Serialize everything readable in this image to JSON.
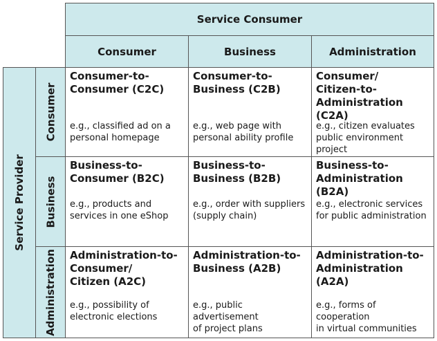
{
  "service_consumer": {
    "title": "Service Consumer",
    "columns": [
      "Consumer",
      "Business",
      "Administration"
    ]
  },
  "service_provider": {
    "title": "Service Provider",
    "rows": [
      "Consumer",
      "Business",
      "Administration"
    ]
  },
  "cells": [
    [
      {
        "title": "Consumer-to-\nConsumer (C2C)",
        "example": "e.g., classified ad on a\npersonal homepage"
      },
      {
        "title": "Consumer-to-\nBusiness (C2B)",
        "example": "e.g., web page with\npersonal ability profile"
      },
      {
        "title": "Consumer/\nCitizen-to-\nAdministration (C2A)",
        "example": "e.g., citizen evaluates\npublic environment\nproject"
      }
    ],
    [
      {
        "title": "Business-to-\nConsumer (B2C)",
        "example": "e.g., products and\nservices in one eShop"
      },
      {
        "title": "Business-to-\nBusiness (B2B)",
        "example": "e.g., order with suppliers\n(supply chain)"
      },
      {
        "title": "Business-to-\nAdministration (B2A)",
        "example": "e.g., electronic services\nfor public administration"
      }
    ],
    [
      {
        "title": "Administration-to-\nConsumer/\nCitizen (A2C)",
        "example": "e.g., possibility of\nelectronic elections"
      },
      {
        "title": "Administration-to-\nBusiness (A2B)",
        "example": "e.g., public advertisement\nof project plans"
      },
      {
        "title": "Administration-to-\nAdministration (A2A)",
        "example": "e.g., forms of cooperation\nin virtual communities"
      }
    ]
  ]
}
